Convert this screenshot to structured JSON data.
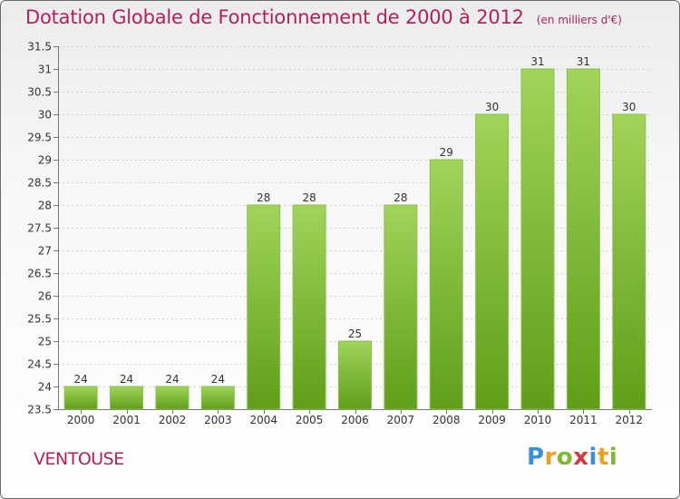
{
  "title": "Dotation Globale de Fonctionnement de 2000 à 2012",
  "subtitle": "(en milliers d'€)",
  "place": "VENTOUSE",
  "logo": {
    "text": "Proxiti",
    "letters": [
      {
        "char": "P",
        "color": "#3a8fd6"
      },
      {
        "char": "r",
        "color": "#e8a21c"
      },
      {
        "char": "o",
        "color": "#7cba2f"
      },
      {
        "char": "x",
        "color": "#d7373f"
      },
      {
        "char": "i",
        "color": "#3a8fd6"
      },
      {
        "char": "t",
        "color": "#e8a21c"
      },
      {
        "char": "i",
        "color": "#7cba2f"
      }
    ]
  },
  "colors": {
    "title": "#b4205f",
    "bar_top": "#a1d45a",
    "bar_bottom": "#5f9e1a",
    "grid": "#cfcfcf",
    "axis_text": "#333333"
  },
  "chart_data": {
    "type": "bar",
    "title": "Dotation Globale de Fonctionnement de 2000 à 2012",
    "subtitle": "(en milliers d'€)",
    "categories": [
      "2000",
      "2001",
      "2002",
      "2003",
      "2004",
      "2005",
      "2006",
      "2007",
      "2008",
      "2009",
      "2010",
      "2011",
      "2012"
    ],
    "values": [
      24,
      24,
      24,
      24,
      28,
      28,
      25,
      28,
      29,
      30,
      31,
      31,
      30
    ],
    "data_labels": [
      "24",
      "24",
      "24",
      "24",
      "28",
      "28",
      "25",
      "28",
      "29",
      "30",
      "31",
      "31",
      "30"
    ],
    "ylim": [
      23.5,
      31.5
    ],
    "yticks": [
      "23.5",
      "24",
      "24.5",
      "25",
      "25.5",
      "26",
      "26.5",
      "27",
      "27.5",
      "28",
      "28.5",
      "29",
      "29.5",
      "30",
      "30.5",
      "31",
      "31.5"
    ],
    "grid": "horizontal",
    "xlabel": "",
    "ylabel": ""
  }
}
